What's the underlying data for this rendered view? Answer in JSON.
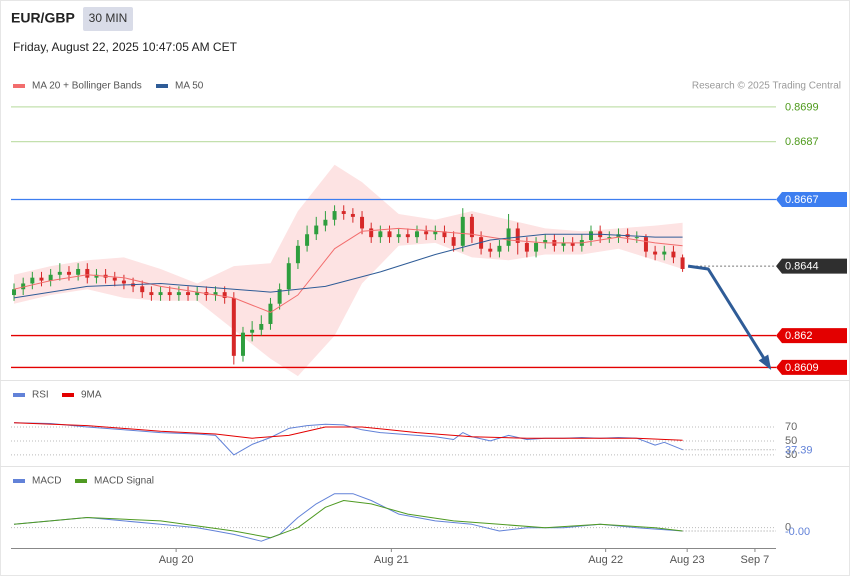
{
  "header": {
    "symbol": "EUR/GBP",
    "interval": "30 MIN",
    "timestamp": "Friday, August 22, 2025 10:47:05 AM CET"
  },
  "chart_data": [
    {
      "type": "candlestick",
      "source": "Research © 2025 Trading Central",
      "xlim": [
        -0.33,
        83.2
      ],
      "ylim": [
        0.8605,
        0.871
      ],
      "up_color": "#2e9e3e",
      "down_color": "#d62828",
      "candles": {
        "open": [
          0.8634,
          0.8636,
          0.8638,
          0.864,
          0.8639,
          0.8641,
          0.8642,
          0.8641,
          0.8643,
          0.864,
          0.8641,
          0.864,
          0.8639,
          0.8638,
          0.8637,
          0.8635,
          0.8634,
          0.8635,
          0.8634,
          0.8635,
          0.8634,
          0.8635,
          0.8634,
          0.8635,
          0.8633,
          0.8613,
          0.8621,
          0.8622,
          0.8624,
          0.8631,
          0.8636,
          0.8645,
          0.8651,
          0.8655,
          0.8658,
          0.866,
          0.8663,
          0.8662,
          0.8661,
          0.8657,
          0.8654,
          0.8656,
          0.8654,
          0.8655,
          0.8654,
          0.8656,
          0.8655,
          0.8656,
          0.8654,
          0.8651,
          0.8661,
          0.8654,
          0.865,
          0.8649,
          0.8651,
          0.8657,
          0.8652,
          0.8649,
          0.8652,
          0.8653,
          0.8651,
          0.8652,
          0.8651,
          0.8653,
          0.8656,
          0.8654,
          0.8654,
          0.8655,
          0.8654,
          0.8654,
          0.8649,
          0.8648,
          0.8649,
          0.8647
        ],
        "high": [
          0.8638,
          0.864,
          0.8642,
          0.8642,
          0.8643,
          0.8645,
          0.8644,
          0.8645,
          0.8645,
          0.8643,
          0.8643,
          0.8642,
          0.8641,
          0.864,
          0.8639,
          0.8637,
          0.8637,
          0.8637,
          0.8637,
          0.8637,
          0.8637,
          0.8637,
          0.8637,
          0.8637,
          0.8635,
          0.8623,
          0.8625,
          0.8627,
          0.8633,
          0.8638,
          0.8647,
          0.8653,
          0.8658,
          0.8661,
          0.8663,
          0.8665,
          0.8665,
          0.8664,
          0.8663,
          0.8659,
          0.8658,
          0.8658,
          0.8657,
          0.8657,
          0.8658,
          0.8658,
          0.8658,
          0.8658,
          0.8656,
          0.8664,
          0.8662,
          0.8656,
          0.8652,
          0.8653,
          0.8662,
          0.8659,
          0.8654,
          0.8654,
          0.8655,
          0.8655,
          0.8654,
          0.8654,
          0.8655,
          0.8658,
          0.8658,
          0.8656,
          0.8657,
          0.8657,
          0.8656,
          0.8655,
          0.8651,
          0.8651,
          0.8651,
          0.8648
        ],
        "low": [
          0.8632,
          0.8634,
          0.8636,
          0.8637,
          0.8637,
          0.8639,
          0.8639,
          0.8639,
          0.8638,
          0.8638,
          0.8638,
          0.8637,
          0.8636,
          0.8635,
          0.8633,
          0.8632,
          0.8632,
          0.8632,
          0.8632,
          0.8632,
          0.8632,
          0.8632,
          0.8632,
          0.8631,
          0.861,
          0.8611,
          0.8618,
          0.862,
          0.8622,
          0.8629,
          0.8634,
          0.8643,
          0.8649,
          0.8653,
          0.8656,
          0.8658,
          0.866,
          0.8659,
          0.8655,
          0.8652,
          0.8652,
          0.8652,
          0.8652,
          0.8652,
          0.8652,
          0.8653,
          0.8653,
          0.8652,
          0.8649,
          0.8649,
          0.8652,
          0.8648,
          0.8647,
          0.8647,
          0.8649,
          0.8648,
          0.8647,
          0.8647,
          0.865,
          0.8649,
          0.8649,
          0.8649,
          0.8649,
          0.8651,
          0.8652,
          0.8652,
          0.8652,
          0.8652,
          0.8652,
          0.8647,
          0.8646,
          0.8646,
          0.8645,
          0.8642
        ],
        "close": [
          0.8636,
          0.8638,
          0.864,
          0.8639,
          0.8641,
          0.8642,
          0.8641,
          0.8643,
          0.864,
          0.8641,
          0.864,
          0.8639,
          0.8638,
          0.8637,
          0.8635,
          0.8634,
          0.8635,
          0.8634,
          0.8635,
          0.8634,
          0.8635,
          0.8634,
          0.8635,
          0.8633,
          0.8613,
          0.8621,
          0.8622,
          0.8624,
          0.8631,
          0.8636,
          0.8645,
          0.8651,
          0.8655,
          0.8658,
          0.866,
          0.8663,
          0.8662,
          0.8661,
          0.8657,
          0.8654,
          0.8656,
          0.8654,
          0.8655,
          0.8654,
          0.8656,
          0.8655,
          0.8656,
          0.8654,
          0.8651,
          0.8661,
          0.8654,
          0.865,
          0.8649,
          0.8651,
          0.8657,
          0.8652,
          0.8649,
          0.8652,
          0.8653,
          0.8651,
          0.8652,
          0.8651,
          0.8653,
          0.8656,
          0.8654,
          0.8654,
          0.8655,
          0.8654,
          0.8654,
          0.8649,
          0.8648,
          0.8649,
          0.8647,
          0.8643
        ]
      },
      "series": [
        {
          "name": "MA 20 + Bollinger Bands",
          "color": "#f26d6d",
          "band_color": "#fde3e3",
          "x": [
            0,
            4,
            8,
            12,
            16,
            20,
            24,
            28,
            31,
            35,
            38,
            42,
            46,
            50,
            54,
            58,
            62,
            66,
            70,
            73
          ],
          "values": [
            0.8636,
            0.8639,
            0.8641,
            0.864,
            0.8637,
            0.8635,
            0.8633,
            0.8628,
            0.8634,
            0.865,
            0.8656,
            0.8657,
            0.8656,
            0.8655,
            0.8653,
            0.8652,
            0.8652,
            0.8654,
            0.8652,
            0.8651
          ],
          "upper": [
            0.8641,
            0.8644,
            0.8646,
            0.8647,
            0.8643,
            0.8638,
            0.8644,
            0.8645,
            0.8663,
            0.8679,
            0.8673,
            0.8662,
            0.866,
            0.8663,
            0.866,
            0.8657,
            0.8656,
            0.8657,
            0.8658,
            0.8659
          ],
          "lower": [
            0.8631,
            0.8634,
            0.8636,
            0.8633,
            0.8632,
            0.8632,
            0.8622,
            0.8612,
            0.8606,
            0.862,
            0.8638,
            0.8651,
            0.8652,
            0.8647,
            0.8646,
            0.8648,
            0.8648,
            0.865,
            0.8646,
            0.8643
          ]
        },
        {
          "name": "MA 50",
          "color": "#2f5c97",
          "x": [
            0,
            8,
            16,
            24,
            28,
            34,
            40,
            46,
            52,
            58,
            64,
            70,
            73
          ],
          "values": [
            0.8633,
            0.8637,
            0.8638,
            0.8636,
            0.8635,
            0.8637,
            0.8642,
            0.8648,
            0.8653,
            0.8655,
            0.8655,
            0.8654,
            0.8654
          ]
        }
      ],
      "levels": [
        {
          "value": 0.8699,
          "color": "#c3e0ad",
          "text_color": "#4e9a1c",
          "style": "solid",
          "boxed": false
        },
        {
          "value": 0.8687,
          "color": "#c3e0ad",
          "text_color": "#4e9a1c",
          "style": "solid",
          "boxed": false
        },
        {
          "value": 0.8667,
          "color": "#3d7ef0",
          "text_color": "#ffffff",
          "style": "solid",
          "boxed": true
        },
        {
          "value": 0.8644,
          "color": "#777777",
          "text_color": "#ffffff",
          "box_color": "#2f2f2f",
          "style": "dotted",
          "boxed": true
        },
        {
          "value": 0.862,
          "color": "#e30000",
          "text_color": "#ffffff",
          "style": "solid",
          "boxed": true
        },
        {
          "value": 0.8609,
          "color": "#e30000",
          "text_color": "#ffffff",
          "style": "solid",
          "boxed": true
        }
      ],
      "projection": {
        "color": "#2f5c97",
        "x": [
          73.6,
          75.8,
          82.5
        ],
        "values": [
          0.8644,
          0.8643,
          0.8609
        ]
      }
    },
    {
      "type": "line",
      "xlim": [
        -0.33,
        83.2
      ],
      "ylim": [
        14,
        116
      ],
      "yticks": [
        30,
        50,
        70
      ],
      "grid": true,
      "series": [
        {
          "name": "RSI",
          "color": "#6282d8",
          "x": [
            0,
            4,
            8,
            12,
            16,
            20,
            22,
            24,
            26,
            28,
            30,
            32,
            34,
            36,
            38,
            40,
            42,
            44,
            46,
            48,
            49,
            50,
            52,
            54,
            56,
            58,
            60,
            62,
            64,
            66,
            68,
            70,
            71,
            73
          ],
          "values": [
            76,
            75,
            70,
            66,
            62,
            60,
            58,
            30,
            45,
            55,
            68,
            72,
            74,
            73,
            66,
            62,
            60,
            58,
            56,
            52,
            62,
            56,
            50,
            58,
            52,
            54,
            54,
            55,
            54,
            55,
            54,
            44,
            48,
            37.39
          ]
        },
        {
          "name": "9MA",
          "color": "#e30000",
          "x": [
            0,
            8,
            16,
            22,
            26,
            30,
            34,
            38,
            44,
            50,
            56,
            62,
            68,
            73
          ],
          "values": [
            76,
            72,
            64,
            60,
            54,
            58,
            70,
            70,
            62,
            56,
            54,
            54,
            54,
            51
          ]
        }
      ]
    },
    {
      "type": "line",
      "xlim": [
        -0.33,
        83.2
      ],
      "ylim": [
        -0.0006,
        0.0017
      ],
      "yticks": [
        0
      ],
      "grid": true,
      "xticks": [
        {
          "value": 17.7,
          "label": "Aug 20"
        },
        {
          "value": 41.2,
          "label": "Aug 21"
        },
        {
          "value": 64.6,
          "label": "Aug 22"
        },
        {
          "value": 73.5,
          "label": "Aug 23"
        },
        {
          "value": 80.9,
          "label": "Sep 7"
        }
      ],
      "series": [
        {
          "name": "MACD",
          "color": "#6282d8",
          "x": [
            0,
            4,
            8,
            12,
            16,
            20,
            22,
            24,
            27,
            29,
            31,
            33,
            35,
            37,
            39,
            42,
            46,
            50,
            53,
            56,
            60,
            64,
            68,
            73
          ],
          "values": [
            0.0001,
            0.0002,
            0.0003,
            0.0002,
            0.0001,
            0.0,
            -0.0001,
            -0.0002,
            -0.0004,
            -0.0002,
            0.0003,
            0.0007,
            0.001,
            0.001,
            0.0008,
            0.0004,
            0.0002,
            0.0001,
            -0.0001,
            0.0,
            0.0,
            0.0001,
            0.0,
            -0.0001
          ],
          "value_labels": [
            null,
            null,
            null,
            null,
            null,
            null,
            null,
            null,
            null,
            null,
            null,
            null,
            null,
            null,
            null,
            null,
            null,
            null,
            null,
            null,
            null,
            null,
            null,
            "-0.00"
          ]
        },
        {
          "name": "MACD Signal",
          "color": "#4f9a22",
          "x": [
            0,
            8,
            16,
            24,
            28,
            31,
            34,
            36,
            39,
            43,
            48,
            53,
            58,
            64,
            70,
            73
          ],
          "values": [
            0.0001,
            0.0003,
            0.0002,
            -0.0001,
            -0.0003,
            0.0,
            0.0006,
            0.0008,
            0.0007,
            0.0004,
            0.0002,
            0.0001,
            0.0,
            0.0001,
            0.0,
            -0.0001
          ]
        }
      ]
    }
  ]
}
